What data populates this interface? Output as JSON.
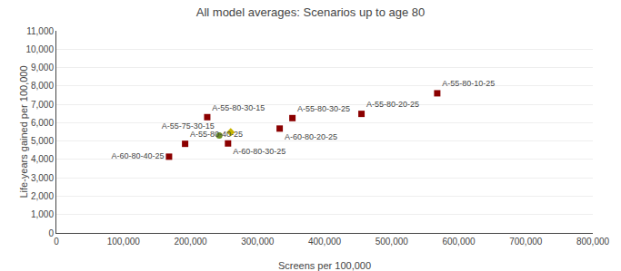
{
  "chart_data": {
    "type": "scatter",
    "title": "All model averages: Scenarios up to age 80",
    "xlabel": "Screens per 100,000",
    "ylabel": "Life-years gained per 100,000",
    "xlim": [
      0,
      800000
    ],
    "ylim": [
      0,
      11000
    ],
    "xticks": [
      0,
      {
        "value": 100000,
        "label": "100,000"
      },
      {
        "value": 200000,
        "label": "200,000"
      },
      {
        "value": 300000,
        "label": "300,000"
      },
      {
        "value": 400000,
        "label": "400,000"
      },
      {
        "value": 500000,
        "label": "500,000"
      },
      {
        "value": 600000,
        "label": "600,000"
      },
      {
        "value": 700000,
        "label": "700,000"
      },
      {
        "value": 800000,
        "label": "800,000"
      }
    ],
    "yticks": [
      0,
      {
        "value": 1000,
        "label": "1,000"
      },
      {
        "value": 2000,
        "label": "2,000"
      },
      {
        "value": 3000,
        "label": "3,000"
      },
      {
        "value": 4000,
        "label": "4,000"
      },
      {
        "value": 5000,
        "label": "5,000"
      },
      {
        "value": 6000,
        "label": "6,000"
      },
      {
        "value": 7000,
        "label": "7,000"
      },
      {
        "value": 8000,
        "label": "8,000"
      },
      {
        "value": 9000,
        "label": "9,000"
      },
      {
        "value": 10000,
        "label": "10,000"
      },
      {
        "value": 11000,
        "label": "11,000"
      }
    ],
    "grid": "y",
    "points": [
      {
        "x": 168000,
        "y": 4150,
        "color": "#8B0000",
        "marker": "square",
        "label": "A-60-80-40-25"
      },
      {
        "x": 192000,
        "y": 4850,
        "color": "#8B0000",
        "marker": "square",
        "label": "A-55-80-40-25"
      },
      {
        "x": 243000,
        "y": 5300,
        "color": "#6B8E23",
        "marker": "circle",
        "label": "A-55-75-30-15"
      },
      {
        "x": 260000,
        "y": 5480,
        "color": "#C8B400",
        "marker": "diamond"
      },
      {
        "x": 256000,
        "y": 4870,
        "color": "#8B0000",
        "marker": "square",
        "label": "A-60-80-30-25"
      },
      {
        "x": 225000,
        "y": 6300,
        "color": "#8B0000",
        "marker": "square",
        "label": "A-55-80-30-15"
      },
      {
        "x": 333000,
        "y": 5680,
        "color": "#8B0000",
        "marker": "square",
        "label": "A-60-80-20-25"
      },
      {
        "x": 352000,
        "y": 6250,
        "color": "#8B0000",
        "marker": "square",
        "label": "A-55-80-30-25"
      },
      {
        "x": 455000,
        "y": 6480,
        "color": "#8B0000",
        "marker": "square",
        "label": "A-55-80-20-25"
      },
      {
        "x": 568000,
        "y": 7600,
        "color": "#8B0000",
        "marker": "square",
        "label": "A-55-80-10-25"
      }
    ]
  }
}
